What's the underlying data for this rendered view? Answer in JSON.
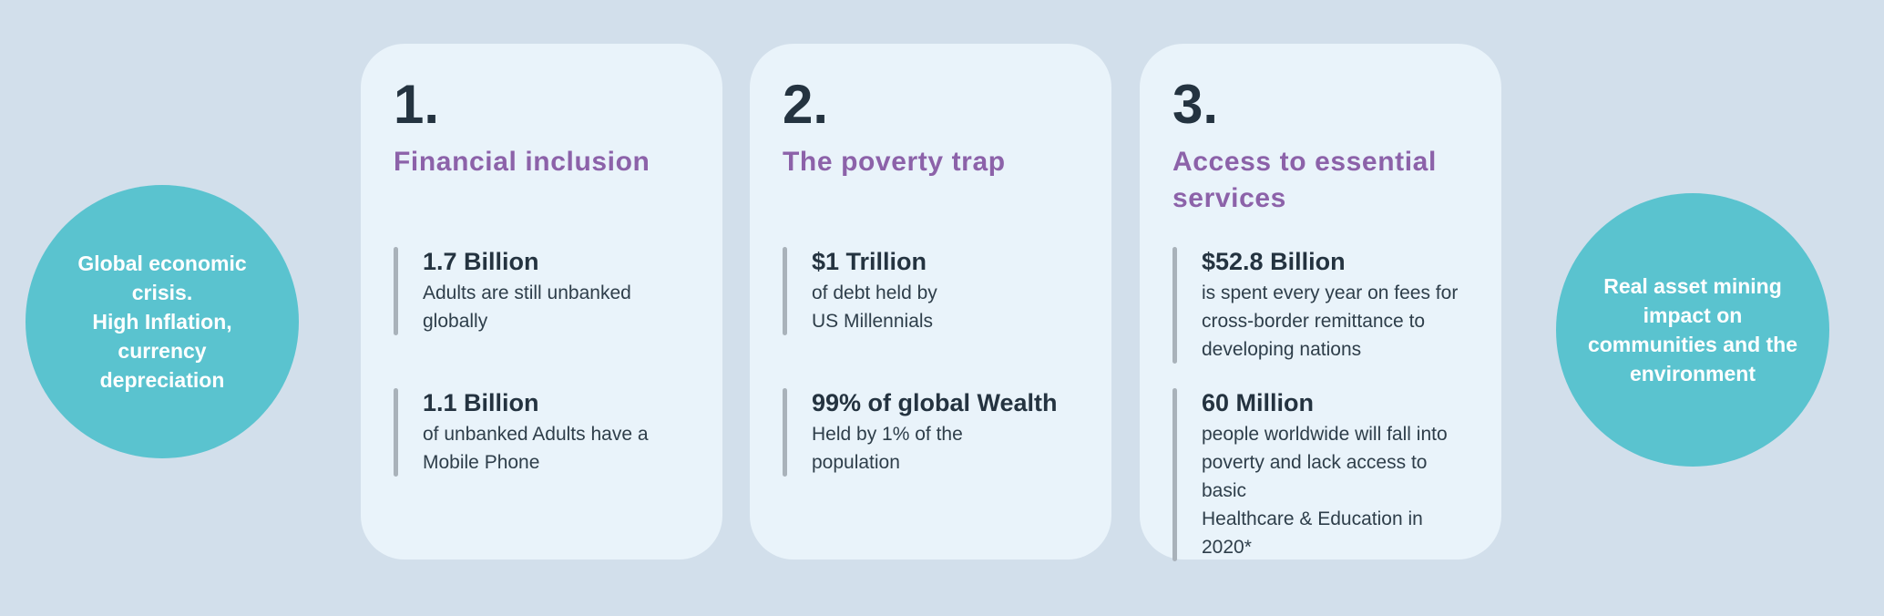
{
  "colors": {
    "background": "#d2dfeb",
    "card_background": "#e9f3fa",
    "circle_teal": "#5ac3cf",
    "heading_purple": "#8c62a9",
    "dark_navy_text": "#243340",
    "accent_bar_gray": "#a9b2ba",
    "circle_text_white": "#ffffff"
  },
  "left_circle": {
    "text": "Global economic\ncrisis.\nHigh Inflation,\ncurrency\ndepreciation"
  },
  "right_circle": {
    "text": "Real asset  mining\nimpact on\ncommunities and the\nenvironment"
  },
  "cards": [
    {
      "number": "1.",
      "heading": "Financial inclusion",
      "stats": [
        {
          "value": "1.7 Billion",
          "desc": "Adults are still unbanked\nglobally"
        },
        {
          "value": "1.1 Billion",
          "desc": "of unbanked Adults have a\nMobile Phone"
        }
      ]
    },
    {
      "number": "2.",
      "heading": "The poverty trap",
      "stats": [
        {
          "value": "$1 Trillion",
          "desc": "of debt held by\nUS Millennials"
        },
        {
          "value": "99% of global Wealth",
          "desc": "Held by 1% of the\npopulation"
        }
      ]
    },
    {
      "number": "3.",
      "heading": "Access to essential\nservices",
      "stats": [
        {
          "value": "$52.8 Billion",
          "desc": "is spent every year on fees for\ncross-border remittance to\ndeveloping nations"
        },
        {
          "value": "60 Million",
          "desc": "people worldwide will fall into\npoverty and lack access to basic\nHealthcare & Education in 2020*"
        }
      ]
    }
  ]
}
